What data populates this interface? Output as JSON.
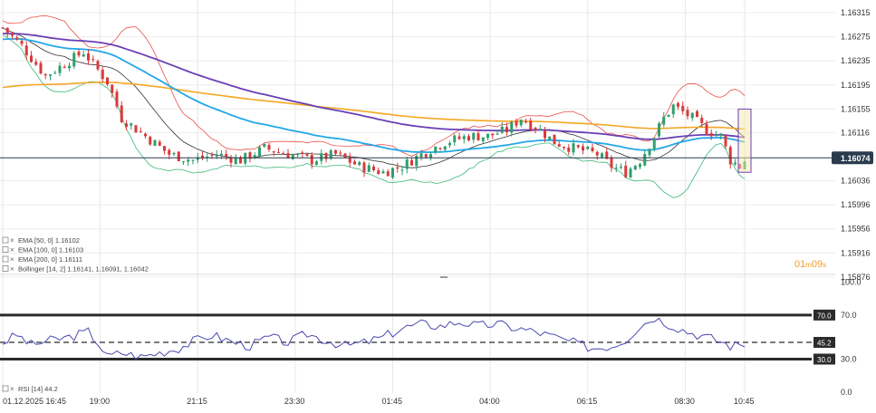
{
  "chart_data": [
    {
      "type": "candlestick",
      "title": "",
      "x_tick_labels": [
        "01.12.2025  16:45",
        "19:00",
        "21:15",
        "23:30",
        "01:45",
        "04:00",
        "06:15",
        "08:30",
        "10:45"
      ],
      "y_tick_labels": [
        "1.16315",
        "1.16275",
        "1.16235",
        "1.16195",
        "1.16155",
        "1.16116",
        "1.16036",
        "1.15996",
        "1.15956",
        "1.15916",
        "1.15876"
      ],
      "ylim": [
        1.1586,
        1.1634
      ],
      "current_price": 1.16074,
      "current_price_label": "1.16074",
      "countdown": {
        "minutes": "01",
        "m": "m",
        "seconds": "09",
        "s": "s"
      },
      "indicator_legend": [
        {
          "label": "EMA  [50, 0]  1.16102",
          "color": "#22a7e8"
        },
        {
          "label": "EMA  [100, 0]  1.16103",
          "color": "#6a3fb5"
        },
        {
          "label": "EMA  [200, 0]  1.16111",
          "color": "#f5a623"
        },
        {
          "label": "Bollinger  [14, 2]  1.16141,  1.16091,  1.16042",
          "color": "#888888"
        }
      ],
      "colors": {
        "up": "#2e9e6e",
        "down": "#d93a3a",
        "ema50": "#22a7e8",
        "ema100": "#6a3fb5",
        "ema200": "#f5a623",
        "bb_upper": "#e8524a",
        "bb_mid": "#333333",
        "bb_lower": "#3cb87a",
        "price_line": "#2b3b4e"
      },
      "close_series_keypoints": [
        [
          0,
          1.1629
        ],
        [
          4,
          1.1626
        ],
        [
          9,
          1.1621
        ],
        [
          13,
          1.1623
        ],
        [
          17,
          1.1625
        ],
        [
          20,
          1.1622
        ],
        [
          22,
          1.162
        ],
        [
          25,
          1.1614
        ],
        [
          30,
          1.1611
        ],
        [
          35,
          1.1608
        ],
        [
          40,
          1.1607
        ],
        [
          45,
          1.1608
        ],
        [
          50,
          1.1607
        ],
        [
          55,
          1.1609
        ],
        [
          60,
          1.1608
        ],
        [
          65,
          1.1607
        ],
        [
          70,
          1.1608
        ],
        [
          75,
          1.1606
        ],
        [
          80,
          1.1605
        ],
        [
          84,
          1.1606
        ],
        [
          88,
          1.1608
        ],
        [
          93,
          1.161
        ],
        [
          98,
          1.1611
        ],
        [
          102,
          1.1611
        ],
        [
          106,
          1.1612
        ],
        [
          109,
          1.1614
        ],
        [
          113,
          1.1612
        ],
        [
          116,
          1.161
        ],
        [
          120,
          1.1609
        ],
        [
          125,
          1.1608
        ],
        [
          128,
          1.1606
        ],
        [
          131,
          1.1605
        ],
        [
          134,
          1.1607
        ],
        [
          137,
          1.1611
        ],
        [
          139,
          1.1614
        ],
        [
          141,
          1.1616
        ],
        [
          145,
          1.1614
        ],
        [
          148,
          1.1612
        ],
        [
          151,
          1.1611
        ],
        [
          153,
          1.1607
        ],
        [
          155,
          1.1606
        ],
        [
          156,
          1.1607
        ]
      ]
    },
    {
      "type": "line",
      "title": "",
      "legend_label": "RSI  [14]  44.2",
      "y_tick_labels": [
        "100.0",
        "70.0",
        "30.0",
        "0.0"
      ],
      "level_labels": [
        "70.0",
        "45.2",
        "30.0"
      ],
      "ylim": [
        0,
        100
      ],
      "levels": [
        70,
        45.2,
        30
      ],
      "color": "#4b49b0",
      "keypoints": [
        [
          0,
          45
        ],
        [
          3,
          52
        ],
        [
          6,
          43
        ],
        [
          10,
          47
        ],
        [
          14,
          50
        ],
        [
          18,
          55
        ],
        [
          20,
          45
        ],
        [
          22,
          32
        ],
        [
          25,
          36
        ],
        [
          29,
          32
        ],
        [
          33,
          36
        ],
        [
          37,
          40
        ],
        [
          40,
          46
        ],
        [
          44,
          52
        ],
        [
          48,
          46
        ],
        [
          52,
          42
        ],
        [
          56,
          50
        ],
        [
          60,
          45
        ],
        [
          64,
          53
        ],
        [
          68,
          47
        ],
        [
          72,
          42
        ],
        [
          76,
          45
        ],
        [
          80,
          50
        ],
        [
          84,
          58
        ],
        [
          88,
          62
        ],
        [
          92,
          60
        ],
        [
          96,
          64
        ],
        [
          100,
          60
        ],
        [
          104,
          62
        ],
        [
          108,
          58
        ],
        [
          112,
          55
        ],
        [
          116,
          50
        ],
        [
          120,
          45
        ],
        [
          124,
          40
        ],
        [
          128,
          42
        ],
        [
          131,
          48
        ],
        [
          134,
          60
        ],
        [
          137,
          68
        ],
        [
          140,
          62
        ],
        [
          144,
          55
        ],
        [
          148,
          50
        ],
        [
          151,
          46
        ],
        [
          153,
          42
        ],
        [
          156,
          44
        ]
      ]
    }
  ]
}
